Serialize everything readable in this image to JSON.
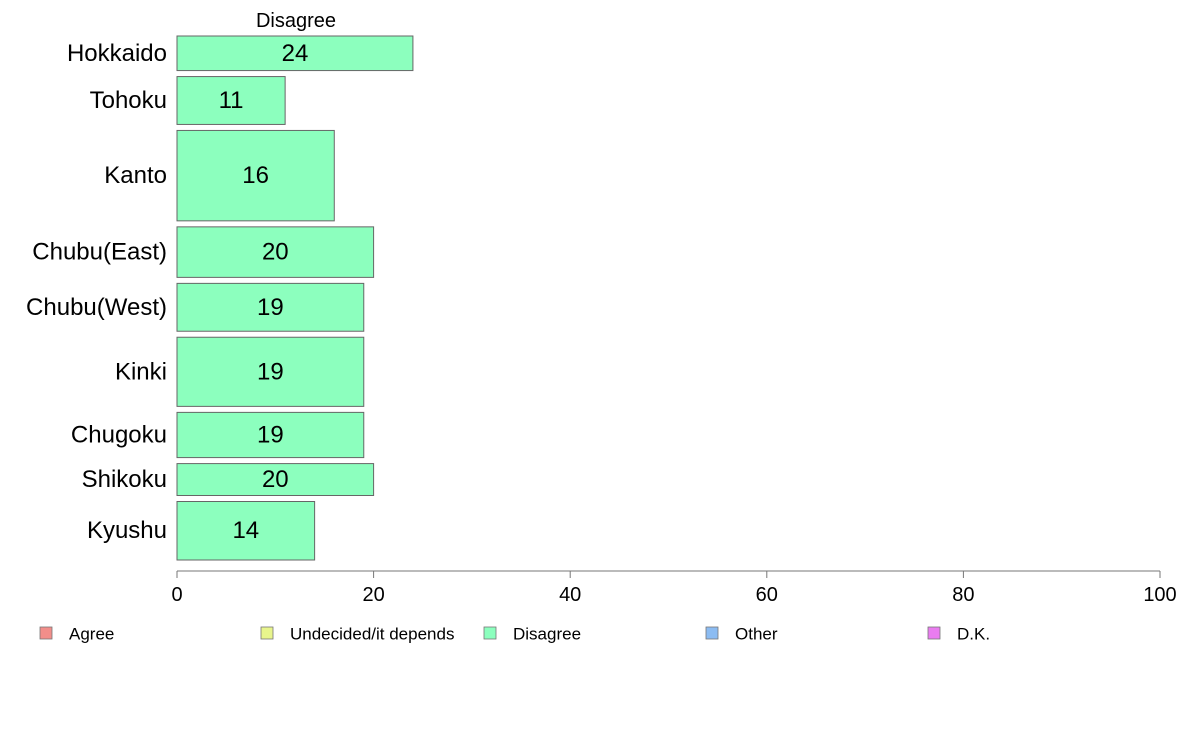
{
  "chart_data": {
    "type": "bar",
    "orientation": "horizontal",
    "title": "",
    "xlabel": "",
    "ylabel": "",
    "series_title": "Disagree",
    "categories": [
      "Hokkaido",
      "Tohoku",
      "Kanto",
      "Chubu(East)",
      "Chubu(West)",
      "Kinki",
      "Chugoku",
      "Shikoku",
      "Kyushu"
    ],
    "series": [
      {
        "name": "Disagree",
        "values": [
          24,
          11,
          16,
          20,
          19,
          19,
          19,
          20,
          14
        ],
        "value_labels": [
          "24",
          "11",
          "16",
          "20",
          "19",
          "19",
          "19",
          "20",
          "14"
        ]
      }
    ],
    "bar_weights": [
      0.65,
      0.9,
      1.7,
      0.95,
      0.9,
      1.3,
      0.85,
      0.6,
      1.1
    ],
    "xlim": [
      0,
      100
    ],
    "xticks": [
      0,
      20,
      40,
      60,
      80,
      100
    ],
    "grid": false,
    "legend": {
      "position": "bottom",
      "items": [
        {
          "label": "Agree",
          "color": "#f28e8a"
        },
        {
          "label": "Undecided/it depends",
          "color": "#e8f58c"
        },
        {
          "label": "Disagree",
          "color": "#8cffbe"
        },
        {
          "label": "Other",
          "color": "#8cbcf2"
        },
        {
          "label": "D.K.",
          "color": "#ea7cf0"
        }
      ]
    },
    "colors": {
      "bar_fill": "#8cffbe",
      "bar_stroke": "#666666",
      "axis": "#777777"
    }
  }
}
